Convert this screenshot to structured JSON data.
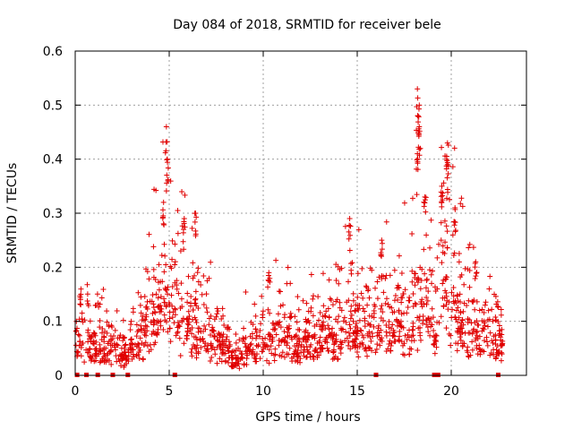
{
  "chart_data": {
    "type": "scatter",
    "title": "Day 084 of 2018, SRMTID for receiver bele",
    "xlabel": "GPS time / hours",
    "ylabel": "SRMTID / TECUs",
    "xlim": [
      0,
      24.0
    ],
    "ylim": [
      0,
      0.6
    ],
    "x_ticks": [
      0,
      5,
      10,
      15,
      20
    ],
    "y_ticks": [
      0,
      0.1,
      0.2,
      0.3,
      0.4,
      0.5,
      0.6
    ],
    "x_tick_labels": [
      "0",
      "5",
      "10",
      "15",
      "20"
    ],
    "y_tick_labels": [
      "0",
      "0.1",
      "0.2",
      "0.3",
      "0.4",
      "0.5",
      "0.6"
    ],
    "grid": true,
    "marker": "plus",
    "color": "#e00000",
    "baseline_marker_hours": [
      0.1,
      0.6,
      1.2,
      2.0,
      2.8,
      5.3,
      16.0,
      19.1,
      19.3,
      22.5
    ],
    "activity_envelope": [
      {
        "x": 0.0,
        "y": 0.06
      },
      {
        "x": 0.5,
        "y": 0.09
      },
      {
        "x": 1.0,
        "y": 0.06
      },
      {
        "x": 2.0,
        "y": 0.07
      },
      {
        "x": 2.5,
        "y": 0.04
      },
      {
        "x": 3.0,
        "y": 0.06
      },
      {
        "x": 3.5,
        "y": 0.09
      },
      {
        "x": 4.0,
        "y": 0.12
      },
      {
        "x": 4.5,
        "y": 0.16
      },
      {
        "x": 4.9,
        "y": 0.21
      },
      {
        "x": 5.5,
        "y": 0.14
      },
      {
        "x": 6.0,
        "y": 0.13
      },
      {
        "x": 6.5,
        "y": 0.11
      },
      {
        "x": 7.0,
        "y": 0.09
      },
      {
        "x": 8.0,
        "y": 0.06
      },
      {
        "x": 8.6,
        "y": 0.03
      },
      {
        "x": 9.2,
        "y": 0.07
      },
      {
        "x": 10.0,
        "y": 0.08
      },
      {
        "x": 11.0,
        "y": 0.09
      },
      {
        "x": 12.0,
        "y": 0.07
      },
      {
        "x": 13.0,
        "y": 0.08
      },
      {
        "x": 14.0,
        "y": 0.1
      },
      {
        "x": 14.5,
        "y": 0.12
      },
      {
        "x": 15.0,
        "y": 0.11
      },
      {
        "x": 16.0,
        "y": 0.1
      },
      {
        "x": 17.0,
        "y": 0.12
      },
      {
        "x": 18.0,
        "y": 0.13
      },
      {
        "x": 18.5,
        "y": 0.16
      },
      {
        "x": 19.0,
        "y": 0.12
      },
      {
        "x": 19.6,
        "y": 0.2
      },
      {
        "x": 20.0,
        "y": 0.19
      },
      {
        "x": 20.5,
        "y": 0.13
      },
      {
        "x": 21.0,
        "y": 0.1
      },
      {
        "x": 21.5,
        "y": 0.09
      },
      {
        "x": 22.0,
        "y": 0.09
      },
      {
        "x": 22.7,
        "y": 0.08
      }
    ],
    "spikes": [
      {
        "x": 0.3,
        "y": 0.15
      },
      {
        "x": 4.7,
        "y": 0.32
      },
      {
        "x": 4.85,
        "y": 0.46
      },
      {
        "x": 4.9,
        "y": 0.4
      },
      {
        "x": 5.8,
        "y": 0.29
      },
      {
        "x": 6.4,
        "y": 0.3
      },
      {
        "x": 10.3,
        "y": 0.19
      },
      {
        "x": 14.6,
        "y": 0.29
      },
      {
        "x": 16.3,
        "y": 0.25
      },
      {
        "x": 18.2,
        "y": 0.53
      },
      {
        "x": 18.3,
        "y": 0.5
      },
      {
        "x": 18.3,
        "y": 0.46
      },
      {
        "x": 18.2,
        "y": 0.41
      },
      {
        "x": 18.6,
        "y": 0.33
      },
      {
        "x": 19.8,
        "y": 0.43
      },
      {
        "x": 19.8,
        "y": 0.39
      },
      {
        "x": 19.5,
        "y": 0.35
      },
      {
        "x": 20.2,
        "y": 0.31
      },
      {
        "x": 21.3,
        "y": 0.21
      }
    ]
  }
}
